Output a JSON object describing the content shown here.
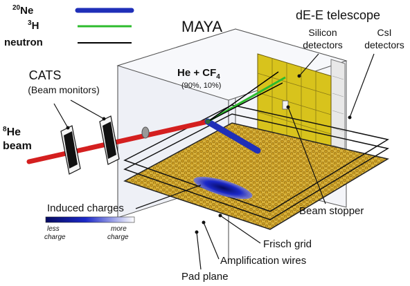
{
  "legend": {
    "items": [
      {
        "label": "20Ne",
        "sup": "20",
        "base": "Ne",
        "color": "#1f2fb8"
      },
      {
        "label": "3H",
        "sup": "3",
        "base": "H",
        "color": "#2dbb2d"
      },
      {
        "label": "neutron",
        "sup": "",
        "base": "neutron",
        "color": "#000000"
      }
    ]
  },
  "title": "MAYA",
  "reaction": {
    "text": "He + CF4",
    "he": "He",
    "plus": "+",
    "cf": "CF",
    "sub": "4",
    "fractions": "(90%, 10%)"
  },
  "cats": {
    "title": "CATS",
    "subtitle": "(Beam monitors)"
  },
  "beam": {
    "sup": "8",
    "name": "He",
    "word": "beam",
    "color": "#d41f1f"
  },
  "telescope": {
    "title": "dE-E telescope",
    "silicon_1": "Silicon",
    "silicon_2": "detectors",
    "csi_1": "CsI",
    "csi_2": "detectors",
    "panel_color": "#d8c31c"
  },
  "labels": {
    "induced": "Induced charges",
    "less_1": "less",
    "less_2": "charge",
    "more_1": "more",
    "more_2": "charge",
    "beam_stopper": "Beam stopper",
    "frisch": "Frisch grid",
    "amplification": "Amplification wires",
    "pad_plane": "Pad plane"
  },
  "colors": {
    "pad": "#d9b23a",
    "charge": "#1b28c8",
    "scale_dark": "#050a60",
    "scale_light": "#ffffff"
  }
}
